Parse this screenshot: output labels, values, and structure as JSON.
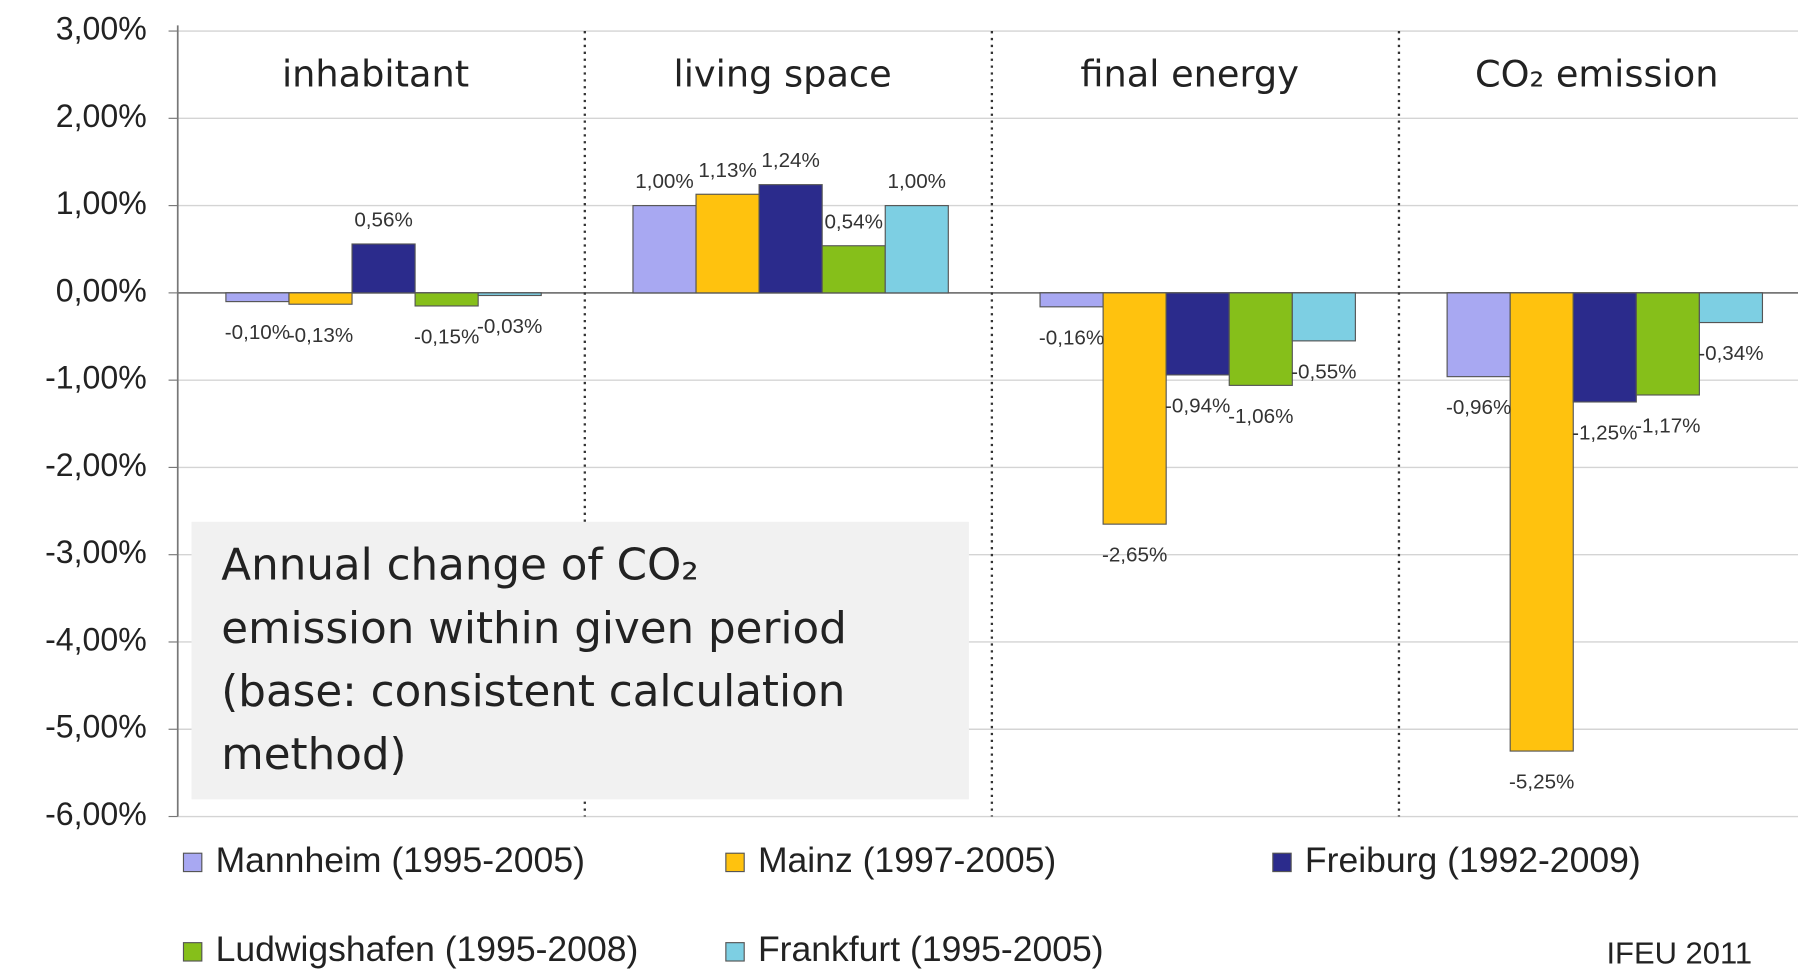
{
  "chart_data": {
    "type": "bar",
    "categories": [
      "inhabitant",
      "living space",
      "final energy",
      "CO₂ emission"
    ],
    "series": [
      {
        "name": "Mannheim (1995-2005)",
        "color": "#a8a8f2",
        "values": [
          -0.1,
          1.0,
          -0.16,
          -0.96
        ],
        "value_labels": [
          "-0,10%",
          "1,00%",
          "-0,16%",
          "-0,96%"
        ]
      },
      {
        "name": "Mainz (1997-2005)",
        "color": "#ffc20e",
        "values": [
          -0.13,
          1.13,
          -2.65,
          -5.25
        ],
        "value_labels": [
          "-0,13%",
          "1,13%",
          "-2,65%",
          "-5,25%"
        ]
      },
      {
        "name": "Freiburg (1992-2009)",
        "color": "#2b2b8c",
        "values": [
          0.56,
          1.24,
          -0.94,
          -1.25
        ],
        "value_labels": [
          "0,56%",
          "1,24%",
          "-0,94%",
          "-1,25%"
        ]
      },
      {
        "name": "Ludwigshafen (1995-2008)",
        "color": "#86bf1a",
        "values": [
          -0.15,
          0.54,
          -1.06,
          -1.17
        ],
        "value_labels": [
          "-0,15%",
          "0,54%",
          "-1,06%",
          "-1,17%"
        ]
      },
      {
        "name": "Frankfurt (1995-2005)",
        "color": "#7dcfe3",
        "values": [
          -0.03,
          1.0,
          -0.55,
          -0.34
        ],
        "value_labels": [
          "-0,03%",
          "1,00%",
          "-0,55%",
          "-0,34%"
        ]
      }
    ],
    "ylim": [
      -6,
      3
    ],
    "yticks": [
      {
        "value": -6,
        "label": "-6,00%"
      },
      {
        "value": -5,
        "label": "-5,00%"
      },
      {
        "value": -4,
        "label": "-4,00%"
      },
      {
        "value": -3,
        "label": "-3,00%"
      },
      {
        "value": -2,
        "label": "-2,00%"
      },
      {
        "value": -1,
        "label": "-1,00%"
      },
      {
        "value": 0,
        "label": "0,00%"
      },
      {
        "value": 1,
        "label": "1,00%"
      },
      {
        "value": 2,
        "label": "2,00%"
      },
      {
        "value": 3,
        "label": "3,00%"
      }
    ],
    "grid": true,
    "legend": "bottom",
    "annotation": [
      "Annual change of CO₂",
      "emission  within given period",
      "(base: consistent  calculation",
      "method)"
    ],
    "source": "IFEU 2011"
  }
}
